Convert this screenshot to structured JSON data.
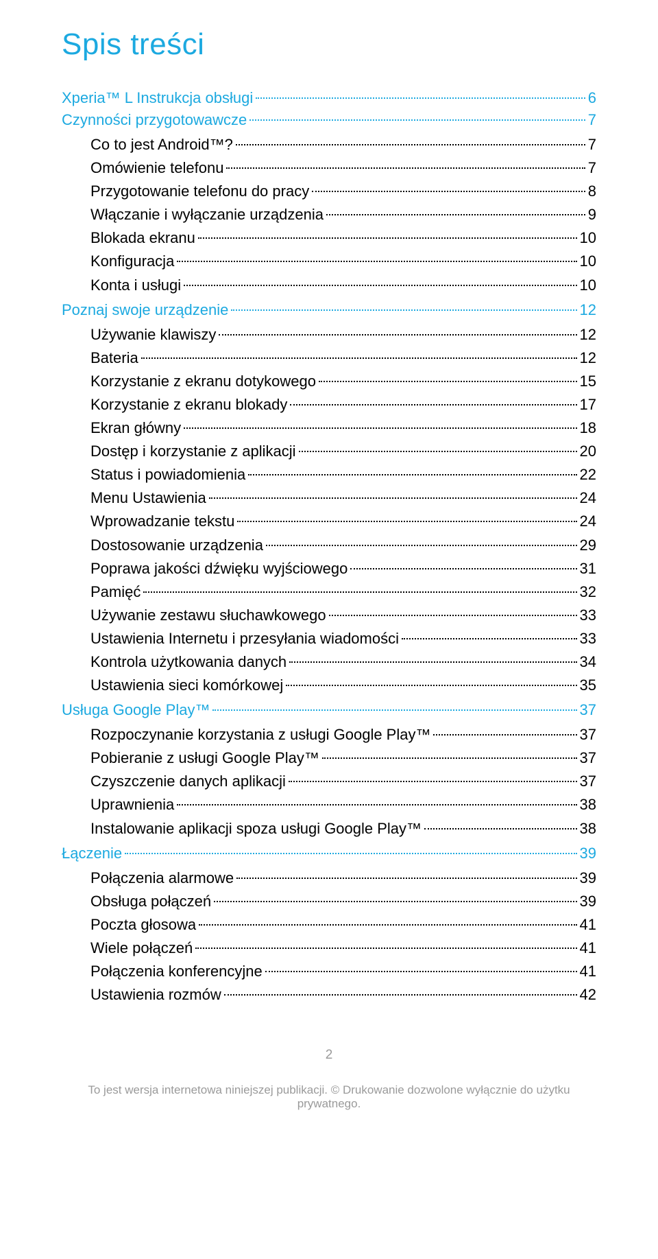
{
  "colors": {
    "accent": "#1ca9e0",
    "body": "#000000",
    "footer": "#9a9a9a"
  },
  "title": "Spis treści",
  "toc": [
    {
      "level": 0,
      "label": "Xperia™ L Instrukcja obsługi",
      "page": "6"
    },
    {
      "level": 0,
      "label": "Czynności przygotowawcze",
      "page": "7"
    },
    {
      "level": 1,
      "label": "Co to jest Android™?",
      "page": "7"
    },
    {
      "level": 1,
      "label": "Omówienie telefonu",
      "page": "7"
    },
    {
      "level": 1,
      "label": "Przygotowanie telefonu do pracy",
      "page": "8"
    },
    {
      "level": 1,
      "label": "Włączanie i wyłączanie urządzenia",
      "page": "9"
    },
    {
      "level": 1,
      "label": "Blokada ekranu",
      "page": "10"
    },
    {
      "level": 1,
      "label": "Konfiguracja",
      "page": "10"
    },
    {
      "level": 1,
      "label": "Konta i usługi",
      "page": "10"
    },
    {
      "level": 0,
      "label": "Poznaj swoje urządzenie",
      "page": "12"
    },
    {
      "level": 1,
      "label": "Używanie klawiszy",
      "page": "12"
    },
    {
      "level": 1,
      "label": "Bateria",
      "page": "12"
    },
    {
      "level": 1,
      "label": "Korzystanie z ekranu dotykowego",
      "page": "15"
    },
    {
      "level": 1,
      "label": "Korzystanie z ekranu blokady",
      "page": "17"
    },
    {
      "level": 1,
      "label": "Ekran główny",
      "page": "18"
    },
    {
      "level": 1,
      "label": "Dostęp i korzystanie z aplikacji",
      "page": "20"
    },
    {
      "level": 1,
      "label": "Status i powiadomienia",
      "page": "22"
    },
    {
      "level": 1,
      "label": "Menu Ustawienia",
      "page": "24"
    },
    {
      "level": 1,
      "label": "Wprowadzanie tekstu",
      "page": "24"
    },
    {
      "level": 1,
      "label": "Dostosowanie urządzenia",
      "page": "29"
    },
    {
      "level": 1,
      "label": "Poprawa jakości dźwięku wyjściowego",
      "page": "31"
    },
    {
      "level": 1,
      "label": "Pamięć",
      "page": "32"
    },
    {
      "level": 1,
      "label": "Używanie zestawu słuchawkowego ",
      "page": "33"
    },
    {
      "level": 1,
      "label": "Ustawienia Internetu i przesyłania wiadomości",
      "page": "33"
    },
    {
      "level": 1,
      "label": "Kontrola użytkowania danych",
      "page": "34"
    },
    {
      "level": 1,
      "label": "Ustawienia sieci komórkowej",
      "page": "35"
    },
    {
      "level": 0,
      "label": "Usługa Google Play™",
      "page": "37"
    },
    {
      "level": 1,
      "label": "Rozpoczynanie korzystania z usługi Google Play™",
      "page": "37"
    },
    {
      "level": 1,
      "label": "Pobieranie z usługi Google Play™",
      "page": "37"
    },
    {
      "level": 1,
      "label": "Czyszczenie danych aplikacji",
      "page": "37"
    },
    {
      "level": 1,
      "label": "Uprawnienia",
      "page": "38"
    },
    {
      "level": 1,
      "label": "Instalowanie aplikacji spoza usługi Google Play™ ",
      "page": "38"
    },
    {
      "level": 0,
      "label": "Łączenie",
      "page": "39"
    },
    {
      "level": 1,
      "label": "Połączenia alarmowe",
      "page": "39"
    },
    {
      "level": 1,
      "label": "Obsługa połączeń",
      "page": "39"
    },
    {
      "level": 1,
      "label": "Poczta głosowa",
      "page": "41"
    },
    {
      "level": 1,
      "label": "Wiele połączeń",
      "page": "41"
    },
    {
      "level": 1,
      "label": "Połączenia konferencyjne",
      "page": "41"
    },
    {
      "level": 1,
      "label": "Ustawienia rozmów",
      "page": "42"
    }
  ],
  "footer": {
    "page_number": "2",
    "notice": "To jest wersja internetowa niniejszej publikacji. © Drukowanie dozwolone wyłącznie do użytku prywatnego."
  }
}
